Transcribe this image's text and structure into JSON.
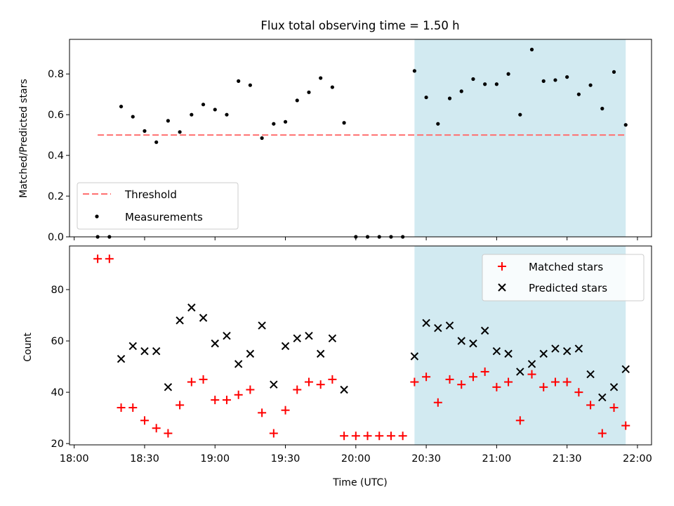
{
  "chart_data": [
    {
      "type": "scatter",
      "title": "Flux total observing time = 1.50 h",
      "xlabel": "",
      "ylabel": "Matched/Predicted stars",
      "xlim": [
        -2,
        246
      ],
      "ylim": [
        0,
        0.97
      ],
      "yticks": [
        0.0,
        0.2,
        0.4,
        0.6,
        0.8
      ],
      "ytick_labels": [
        "0.0",
        "0.2",
        "0.4",
        "0.6",
        "0.8"
      ],
      "shaded_region": [
        145,
        235
      ],
      "shaded_color": "#add8e6",
      "threshold": {
        "name": "Threshold",
        "value": 0.5,
        "x_range": [
          10,
          235
        ],
        "color": "#ff7070"
      },
      "legend_position": "lower-left",
      "series": [
        {
          "name": "Measurements",
          "marker": "dot",
          "color": "#000000",
          "x": [
            10,
            15,
            20,
            25,
            30,
            35,
            40,
            45,
            50,
            55,
            60,
            65,
            70,
            75,
            80,
            85,
            90,
            95,
            100,
            105,
            110,
            115,
            120,
            125,
            130,
            135,
            140,
            145,
            150,
            155,
            160,
            165,
            170,
            175,
            180,
            185,
            190,
            195,
            200,
            205,
            210,
            215,
            220,
            225,
            230,
            235
          ],
          "y": [
            0.0,
            0.0,
            0.64,
            0.59,
            0.52,
            0.465,
            0.57,
            0.515,
            0.6,
            0.65,
            0.625,
            0.6,
            0.765,
            0.745,
            0.485,
            0.555,
            0.565,
            0.67,
            0.71,
            0.78,
            0.735,
            0.56,
            0.0,
            0.0,
            0.0,
            0.0,
            0.0,
            0.815,
            0.685,
            0.555,
            0.68,
            0.715,
            0.775,
            0.75,
            0.75,
            0.8,
            0.6,
            0.92,
            0.765,
            0.77,
            0.785,
            0.7,
            0.745,
            0.63,
            0.81,
            0.55
          ]
        }
      ]
    },
    {
      "type": "scatter",
      "title": "",
      "xlabel": "Time (UTC)",
      "ylabel": "Count",
      "xlim": [
        -2,
        246
      ],
      "ylim": [
        19.5,
        97
      ],
      "yticks": [
        20,
        40,
        60,
        80
      ],
      "ytick_labels": [
        "20",
        "40",
        "60",
        "80"
      ],
      "xticks": [
        0,
        30,
        60,
        90,
        120,
        150,
        180,
        210,
        240
      ],
      "xtick_labels": [
        "18:00",
        "18:30",
        "19:00",
        "19:30",
        "20:00",
        "20:30",
        "21:00",
        "21:30",
        "22:00"
      ],
      "shaded_region": [
        145,
        235
      ],
      "shaded_color": "#add8e6",
      "legend_position": "upper-right",
      "series": [
        {
          "name": "Matched stars",
          "marker": "plus",
          "color": "#ff0000",
          "x": [
            10,
            15,
            20,
            25,
            30,
            35,
            40,
            45,
            50,
            55,
            60,
            65,
            70,
            75,
            80,
            85,
            90,
            95,
            100,
            105,
            110,
            115,
            120,
            125,
            130,
            135,
            140,
            145,
            150,
            155,
            160,
            165,
            170,
            175,
            180,
            185,
            190,
            195,
            200,
            205,
            210,
            215,
            220,
            225,
            230,
            235
          ],
          "y": [
            92,
            92,
            34,
            34,
            29,
            26,
            24,
            35,
            44,
            45,
            37,
            37,
            39,
            41,
            32,
            24,
            33,
            41,
            44,
            43,
            45,
            23,
            23,
            23,
            23,
            23,
            23,
            44,
            46,
            36,
            45,
            43,
            46,
            48,
            42,
            44,
            29,
            47,
            42,
            44,
            44,
            40,
            35,
            24,
            34,
            27
          ]
        },
        {
          "name": "Predicted stars",
          "marker": "x",
          "color": "#000000",
          "x": [
            20,
            25,
            30,
            35,
            40,
            45,
            50,
            55,
            60,
            65,
            70,
            75,
            80,
            85,
            90,
            95,
            100,
            105,
            110,
            115,
            145,
            150,
            155,
            160,
            165,
            170,
            175,
            180,
            185,
            190,
            195,
            200,
            205,
            210,
            215,
            220,
            225,
            230,
            235
          ],
          "y": [
            53,
            58,
            56,
            56,
            42,
            68,
            73,
            69,
            59,
            62,
            51,
            55,
            66,
            43,
            58,
            61,
            62,
            55,
            61,
            41,
            54,
            67,
            65,
            66,
            60,
            59,
            64,
            56,
            55,
            48,
            51,
            55,
            57,
            56,
            57,
            47,
            38,
            42,
            49
          ]
        }
      ]
    }
  ]
}
